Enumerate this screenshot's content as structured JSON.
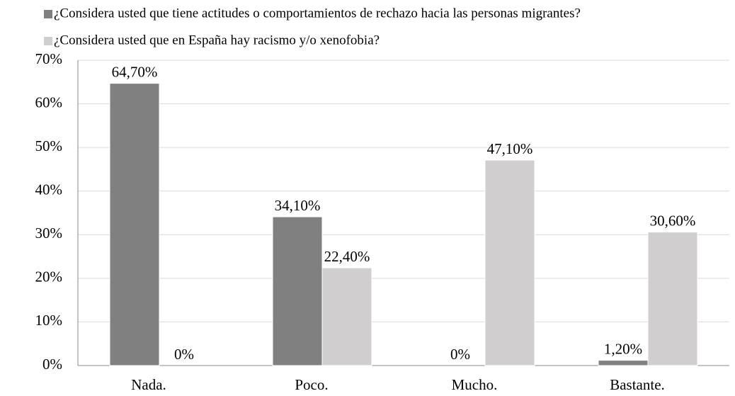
{
  "chart_data": {
    "type": "bar",
    "categories": [
      "Nada.",
      "Poco.",
      "Mucho.",
      "Bastante."
    ],
    "series": [
      {
        "name": "¿Considera usted que tiene actitudes o comportamientos de rechazo hacia las personas migrantes?",
        "color": "#808080",
        "values": [
          64.7,
          34.1,
          0,
          1.2
        ],
        "value_labels": [
          "64,70%",
          "34,10%",
          "0%",
          "1,20%"
        ]
      },
      {
        "name": "¿Considera usted que en España hay racismo y/o xenofobia?",
        "color": "#d0cece",
        "values": [
          0,
          22.4,
          47.1,
          30.6
        ],
        "value_labels": [
          "0%",
          "22,40%",
          "47,10%",
          "30,60%"
        ]
      }
    ],
    "ylim": [
      0,
      70
    ],
    "yticks": [
      {
        "value": 0,
        "label": "0%"
      },
      {
        "value": 10,
        "label": "10%"
      },
      {
        "value": 20,
        "label": "20%"
      },
      {
        "value": 30,
        "label": "30%"
      },
      {
        "value": 40,
        "label": "40%"
      },
      {
        "value": 50,
        "label": "50%"
      },
      {
        "value": 60,
        "label": "60%"
      },
      {
        "value": 70,
        "label": "70%"
      }
    ],
    "grid": true
  }
}
